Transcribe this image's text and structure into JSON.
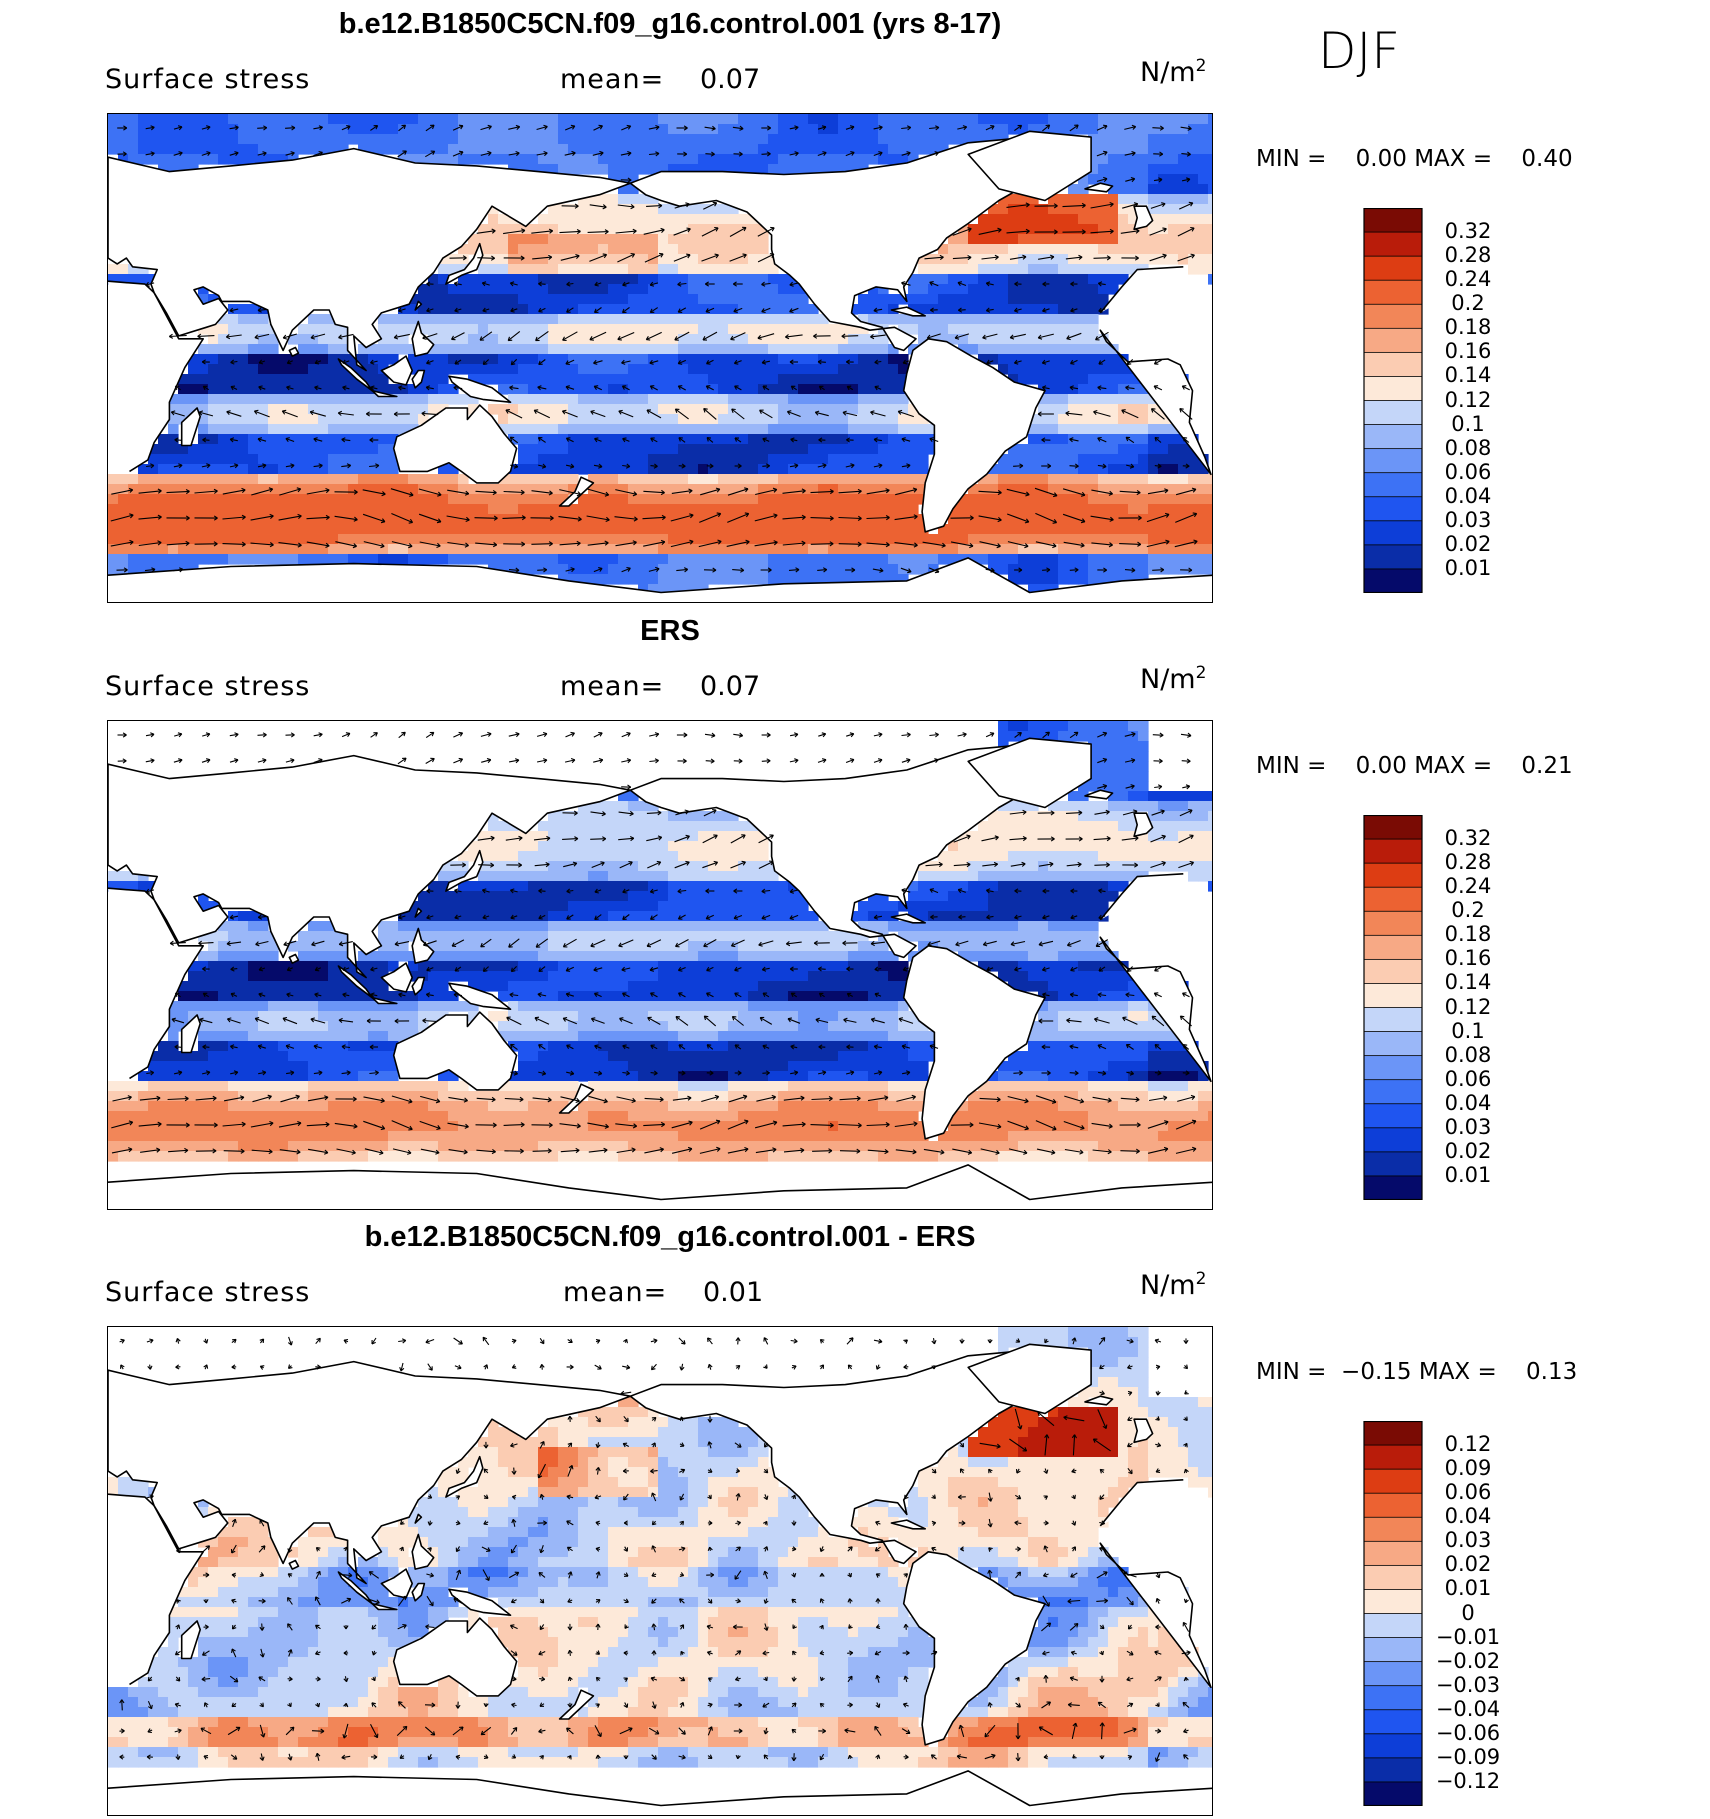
{
  "season": "DJF",
  "units_text": "N/m",
  "units_exp": "2",
  "var_label": "Surface stress",
  "mean_label": "mean=",
  "colors": {
    "seq": [
      "#050a6a",
      "#0a2da8",
      "#0d3ed8",
      "#1f55f0",
      "#3d72f5",
      "#6b95f7",
      "#9ab7f8",
      "#c4d6f9",
      "#dfe9fb",
      "#fde9d9",
      "#fbccb2",
      "#f7a985",
      "#f28658",
      "#ec6232",
      "#dd3d13",
      "#b91c0a",
      "#7a0b04"
    ]
  },
  "chart_data": [
    {
      "type": "heatmap",
      "title": "b.e12.B1850C5CN.f09_g16.control.001 (yrs 8-17)",
      "variable": "Surface stress",
      "units": "N/m2",
      "mean": "0.07",
      "min_label": "MIN =",
      "min": "0.00",
      "max_label": "MAX =",
      "max": "0.40",
      "colorbar_levels": [
        "0.32",
        "0.28",
        "0.24",
        "0.2",
        "0.18",
        "0.16",
        "0.14",
        "0.12",
        "0.1",
        "0.08",
        "0.06",
        "0.04",
        "0.03",
        "0.02",
        "0.01"
      ],
      "field": "model"
    },
    {
      "type": "heatmap",
      "title": "ERS",
      "variable": "Surface stress",
      "units": "N/m2",
      "mean": "0.07",
      "min_label": "MIN =",
      "min": "0.00",
      "max_label": "MAX =",
      "max": "0.21",
      "colorbar_levels": [
        "0.32",
        "0.28",
        "0.24",
        "0.2",
        "0.18",
        "0.16",
        "0.14",
        "0.12",
        "0.1",
        "0.08",
        "0.06",
        "0.04",
        "0.03",
        "0.02",
        "0.01"
      ],
      "field": "obs"
    },
    {
      "type": "heatmap",
      "title": "b.e12.B1850C5CN.f09_g16.control.001 - ERS",
      "variable": "Surface stress",
      "units": "N/m2",
      "mean": "0.01",
      "min_label": "MIN =",
      "min": "−0.15",
      "max_label": "MAX =",
      "max": "0.13",
      "colorbar_levels": [
        "0.12",
        "0.09",
        "0.06",
        "0.04",
        "0.03",
        "0.02",
        "0.01",
        "0",
        "−0.01",
        "−0.02",
        "−0.03",
        "−0.04",
        "−0.06",
        "−0.09",
        "−0.12"
      ],
      "field": "diff"
    }
  ]
}
